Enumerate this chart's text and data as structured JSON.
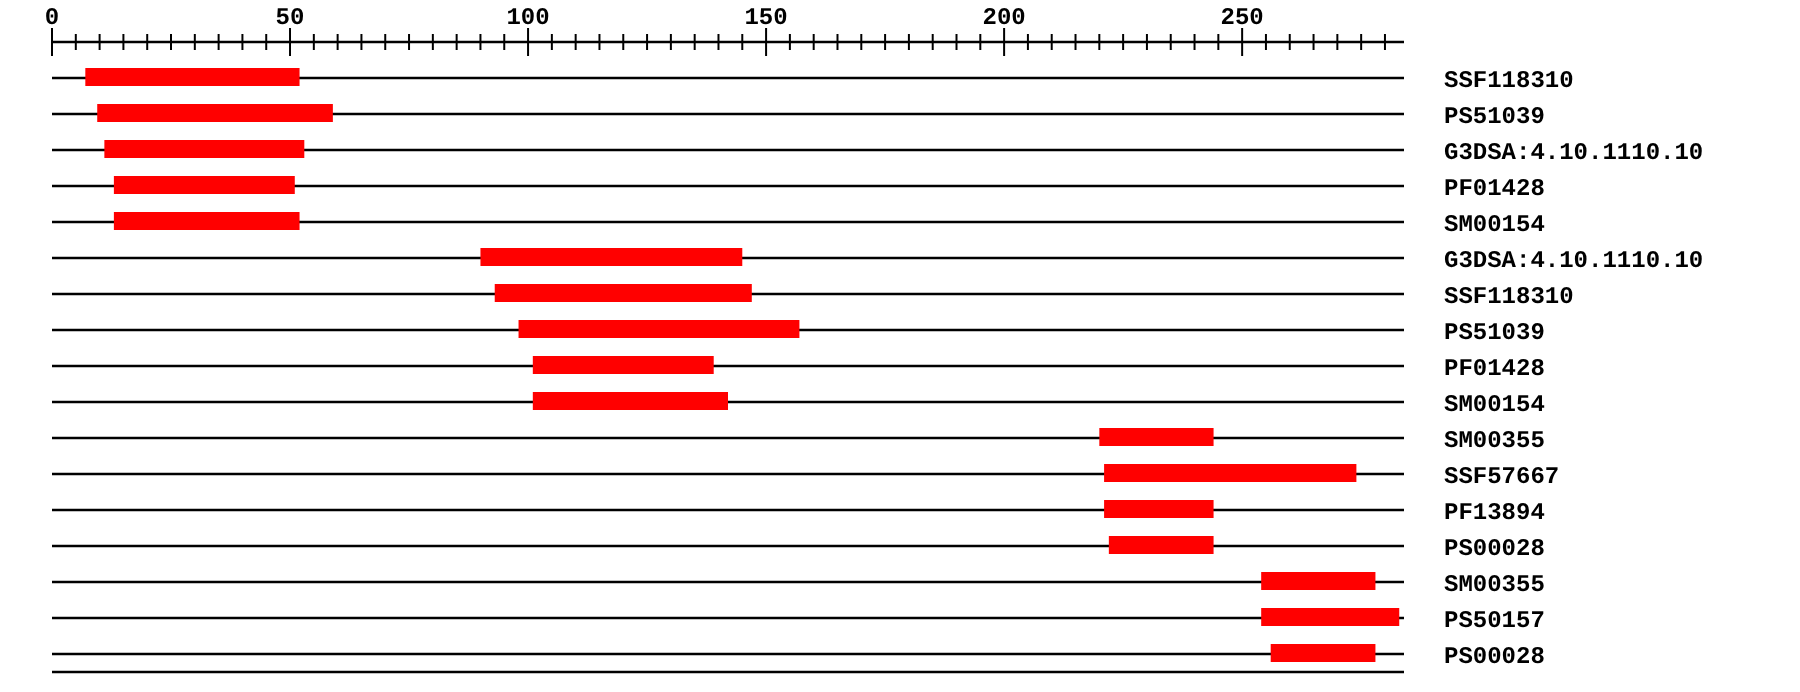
{
  "chart_data": {
    "type": "bar",
    "orientation": "horizontal",
    "color": "#ff0000",
    "grid": "y",
    "categories": [
      "SSF118310",
      "PS51039",
      "G3DSA:4.10.1110.10",
      "PF01428",
      "SM00154",
      "G3DSA:4.10.1110.10",
      "SSF118310",
      "PS51039",
      "PF01428",
      "SM00154",
      "SM00355",
      "SSF57667",
      "PF13894",
      "PS00028",
      "SM00355",
      "PS50157",
      "PS00028"
    ],
    "base": [
      7,
      9.5,
      11,
      13,
      13,
      90,
      93,
      98,
      101,
      101,
      220,
      221,
      221,
      222,
      254,
      254,
      256
    ],
    "values": [
      45,
      49.5,
      42,
      38,
      39,
      55,
      54,
      59,
      38,
      41,
      24,
      53,
      23,
      22,
      24,
      29,
      22
    ],
    "xlim": [
      0,
      284
    ],
    "xticks": [
      0,
      {
        "value": 5,
        "label": null
      },
      {
        "value": 10,
        "label": null
      },
      {
        "value": 15,
        "label": null
      },
      {
        "value": 20,
        "label": null
      },
      {
        "value": 25,
        "label": null
      },
      {
        "value": 30,
        "label": null
      },
      {
        "value": 35,
        "label": null
      },
      {
        "value": 40,
        "label": null
      },
      {
        "value": 45,
        "label": null
      },
      50,
      {
        "value": 55,
        "label": null
      },
      {
        "value": 60,
        "label": null
      },
      {
        "value": 65,
        "label": null
      },
      {
        "value": 70,
        "label": null
      },
      {
        "value": 75,
        "label": null
      },
      {
        "value": 80,
        "label": null
      },
      {
        "value": 85,
        "label": null
      },
      {
        "value": 90,
        "label": null
      },
      {
        "value": 95,
        "label": null
      },
      100,
      {
        "value": 105,
        "label": null
      },
      {
        "value": 110,
        "label": null
      },
      {
        "value": 115,
        "label": null
      },
      {
        "value": 120,
        "label": null
      },
      {
        "value": 125,
        "label": null
      },
      {
        "value": 130,
        "label": null
      },
      {
        "value": 135,
        "label": null
      },
      {
        "value": 140,
        "label": null
      },
      {
        "value": 145,
        "label": null
      },
      150,
      {
        "value": 155,
        "label": null
      },
      {
        "value": 160,
        "label": null
      },
      {
        "value": 165,
        "label": null
      },
      {
        "value": 170,
        "label": null
      },
      {
        "value": 175,
        "label": null
      },
      {
        "value": 180,
        "label": null
      },
      {
        "value": 185,
        "label": null
      },
      {
        "value": 190,
        "label": null
      },
      {
        "value": 195,
        "label": null
      },
      200,
      {
        "value": 205,
        "label": null
      },
      {
        "value": 210,
        "label": null
      },
      {
        "value": 215,
        "label": null
      },
      {
        "value": 220,
        "label": null
      },
      {
        "value": 225,
        "label": null
      },
      {
        "value": 230,
        "label": null
      },
      {
        "value": 235,
        "label": null
      },
      {
        "value": 240,
        "label": null
      },
      {
        "value": 245,
        "label": null
      },
      250,
      {
        "value": 255,
        "label": null
      },
      {
        "value": 260,
        "label": null
      },
      {
        "value": 265,
        "label": null
      },
      {
        "value": 270,
        "label": null
      },
      {
        "value": 275,
        "label": null
      },
      {
        "value": 280,
        "label": null
      }
    ]
  }
}
